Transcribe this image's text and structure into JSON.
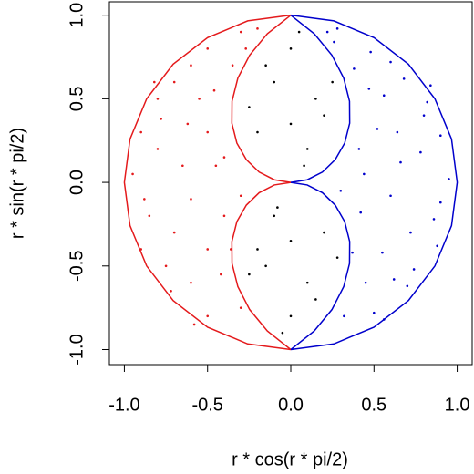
{
  "chart_data": {
    "type": "scatter",
    "x_label": "r * cos(r * pi/2)",
    "y_label": "r * sin(r * pi/2)",
    "xlim": [
      -1.09,
      1.09
    ],
    "ylim": [
      -1.09,
      1.08
    ],
    "xticks": [
      {
        "value": -1,
        "label": "-1.0"
      },
      {
        "value": -0.5,
        "label": "-0.5"
      },
      {
        "value": 0,
        "label": "0.0"
      },
      {
        "value": 0.5,
        "label": "0.5"
      },
      {
        "value": 1,
        "label": "1.0"
      }
    ],
    "yticks": [
      {
        "value": -1,
        "label": "-1.0"
      },
      {
        "value": -0.5,
        "label": "-0.5"
      },
      {
        "value": 0,
        "label": "0.0"
      },
      {
        "value": 0.5,
        "label": "0.5"
      },
      {
        "value": 1,
        "label": "1.0"
      }
    ],
    "curves": [
      {
        "color": "#e41a1c",
        "x": [
          0,
          -0.259,
          -0.5,
          -0.707,
          -0.866,
          -0.966,
          -1,
          -0.966,
          -0.866,
          -0.707,
          -0.5,
          -0.259,
          0
        ],
        "y": [
          1,
          0.966,
          0.866,
          0.707,
          0.5,
          0.259,
          0,
          -0.259,
          -0.5,
          -0.707,
          -0.866,
          -0.966,
          -1
        ]
      },
      {
        "color": "#e41a1c",
        "x": [
          0,
          -0.0988,
          -0.19,
          -0.267,
          -0.324,
          -0.354,
          -0.353,
          -0.318,
          -0.247,
          -0.141,
          0
        ],
        "y": [
          0,
          0.0156,
          0.0618,
          0.136,
          0.235,
          0.354,
          0.485,
          0.624,
          0.761,
          0.889,
          1
        ]
      },
      {
        "color": "#e41a1c",
        "x": [
          0,
          -0.0988,
          -0.19,
          -0.267,
          -0.324,
          -0.354,
          -0.353,
          -0.318,
          -0.247,
          -0.141,
          0
        ],
        "y": [
          0,
          -0.0156,
          -0.0618,
          -0.136,
          -0.235,
          -0.354,
          -0.485,
          -0.624,
          -0.761,
          -0.889,
          -1
        ]
      },
      {
        "color": "#0000cc",
        "x": [
          0,
          0.259,
          0.5,
          0.707,
          0.866,
          0.966,
          1,
          0.966,
          0.866,
          0.707,
          0.5,
          0.259,
          0
        ],
        "y": [
          1,
          0.966,
          0.866,
          0.707,
          0.5,
          0.259,
          0,
          -0.259,
          -0.5,
          -0.707,
          -0.866,
          -0.966,
          -1
        ]
      },
      {
        "color": "#0000cc",
        "x": [
          0,
          0.0988,
          0.19,
          0.267,
          0.324,
          0.354,
          0.353,
          0.318,
          0.247,
          0.141,
          0
        ],
        "y": [
          0,
          0.0156,
          0.0618,
          0.136,
          0.235,
          0.354,
          0.485,
          0.624,
          0.761,
          0.889,
          1
        ]
      },
      {
        "color": "#0000cc",
        "x": [
          0,
          0.0988,
          0.19,
          0.267,
          0.324,
          0.354,
          0.353,
          0.318,
          0.247,
          0.141,
          0
        ],
        "y": [
          0,
          -0.0156,
          -0.0618,
          -0.136,
          -0.235,
          -0.354,
          -0.485,
          -0.624,
          -0.761,
          -0.889,
          -1
        ]
      }
    ],
    "series": [
      {
        "color": "#e41a1c",
        "x": [
          -0.9,
          -0.8,
          -0.7,
          -0.6,
          -0.5,
          -0.3,
          -0.85,
          -0.75,
          -0.6,
          -0.5,
          -0.3,
          -0.95,
          -0.65,
          -0.5,
          -0.45,
          -0.4,
          -0.5,
          -0.7,
          -0.35,
          -0.2,
          -0.9,
          -0.8,
          -0.6,
          -0.55,
          -0.4,
          -0.3,
          -0.42,
          -0.78,
          -0.62,
          -0.88,
          -0.72,
          -0.36,
          -0.58,
          -0.27,
          -0.82,
          -0.46
        ],
        "y": [
          0.3,
          0.5,
          0.6,
          0.7,
          0.8,
          0.9,
          -0.2,
          -0.5,
          -0.6,
          -0.8,
          -0.75,
          0.05,
          0.1,
          0.3,
          0.1,
          -0.2,
          -0.4,
          -0.3,
          0.7,
          0.92,
          -0.4,
          0.2,
          -0.1,
          0.5,
          0.15,
          -0.08,
          -0.55,
          0.38,
          0.35,
          -0.1,
          -0.65,
          -0.4,
          -0.85,
          0.8,
          0.6,
          0.55
        ]
      },
      {
        "color": "#0000cc",
        "x": [
          0.9,
          0.82,
          0.68,
          0.6,
          0.48,
          0.28,
          0.86,
          0.74,
          0.62,
          0.5,
          0.32,
          0.95,
          0.66,
          0.52,
          0.44,
          0.42,
          0.55,
          0.72,
          0.38,
          0.22,
          0.88,
          0.78,
          0.6,
          0.56,
          0.41,
          0.3,
          0.45,
          0.8,
          0.64,
          0.9,
          0.7,
          0.37,
          0.56,
          0.26,
          0.84,
          0.47
        ],
        "y": [
          0.28,
          0.48,
          0.62,
          0.72,
          0.78,
          0.92,
          -0.22,
          -0.52,
          -0.58,
          -0.78,
          -0.8,
          0.02,
          0.12,
          0.32,
          0.05,
          -0.18,
          -0.42,
          -0.3,
          0.68,
          0.9,
          -0.38,
          0.18,
          -0.08,
          0.52,
          0.2,
          -0.05,
          -0.6,
          0.4,
          0.3,
          -0.12,
          -0.62,
          -0.42,
          -0.82,
          0.84,
          0.58,
          0.56
        ]
      },
      {
        "color": "#000000",
        "x": [
          0,
          -0.1,
          0.15,
          0.2,
          -0.2,
          0.1,
          0.05,
          -0.15,
          0.25,
          0,
          -0.25,
          0.08,
          0,
          0.1,
          -0.15,
          -0.2,
          0.2,
          -0.1,
          -0.05,
          0.15,
          -0.25,
          0,
          0.28,
          -0.08
        ],
        "y": [
          0.8,
          0.6,
          0.5,
          0.4,
          0.3,
          0.2,
          0.9,
          0.7,
          0.6,
          0.35,
          0.45,
          0.1,
          -0.8,
          -0.6,
          -0.5,
          -0.4,
          -0.3,
          -0.2,
          -0.9,
          -0.7,
          -0.55,
          -0.35,
          -0.45,
          -0.15
        ]
      }
    ]
  }
}
